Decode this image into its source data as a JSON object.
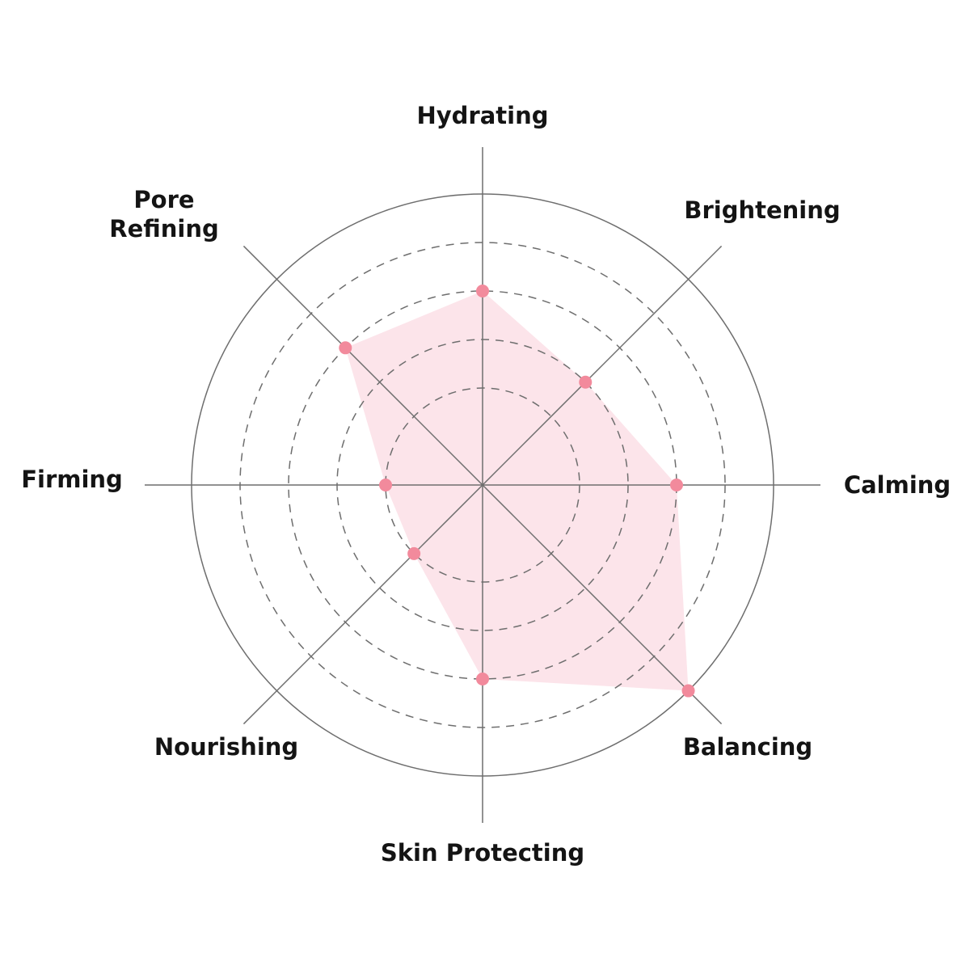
{
  "chart_data": {
    "type": "radar",
    "categories": [
      "Hydrating",
      "Brightening",
      "Calming",
      "Balancing",
      "Skin Protecting",
      "Nourishing",
      "Firming",
      "Pore Refining"
    ],
    "values": [
      4,
      3,
      4,
      6,
      4,
      2,
      2,
      4
    ],
    "rlim": [
      0,
      6
    ],
    "rings": [
      2,
      3,
      4,
      5,
      6
    ],
    "grid": true,
    "colors": {
      "fill": "#fce4ea",
      "point": "#f28a9c",
      "grid": "#6e6e6e",
      "text": "#141414"
    }
  }
}
